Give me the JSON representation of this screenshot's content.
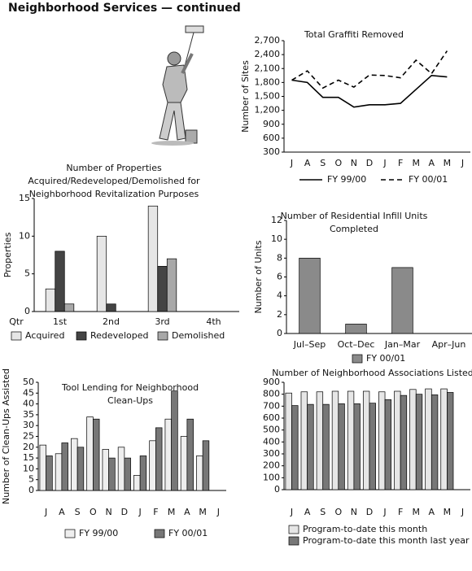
{
  "page_title": "Neighborhood Services — continued",
  "chart_data": [
    {
      "type": "line",
      "title": [
        "Total Graffiti Removed"
      ],
      "y_label": "Number of Sites",
      "categories": [
        "J",
        "A",
        "S",
        "O",
        "N",
        "D",
        "J",
        "F",
        "M",
        "A",
        "M",
        "J"
      ],
      "series": [
        {
          "name": "FY 99/00",
          "color": "#000000",
          "line_style": "solid",
          "values": [
            1850,
            1800,
            1480,
            1480,
            1270,
            1320,
            1320,
            1350,
            1650,
            1950,
            1920,
            null
          ]
        },
        {
          "name": "FY 00/01",
          "color": "#000000",
          "line_style": "dashed",
          "values": [
            1850,
            2050,
            1680,
            1850,
            1700,
            1960,
            1950,
            1900,
            2280,
            1990,
            2480,
            null
          ]
        }
      ],
      "ylim": [
        300,
        2700
      ],
      "yticks": [
        300,
        600,
        900,
        {
          "value": 1200,
          "label": "1,200"
        },
        {
          "value": 1500,
          "label": "1,500"
        },
        {
          "value": 1800,
          "label": "1,800"
        },
        {
          "value": 2100,
          "label": "2,100"
        },
        {
          "value": 2400,
          "label": "2,400"
        },
        {
          "value": 2700,
          "label": "2,700"
        }
      ],
      "grid": false
    },
    {
      "type": "bar",
      "title": [
        "Number of Properties",
        "Acquired/Redeveloped/Demolished for",
        "Neighborhood Revitalization Purposes"
      ],
      "y_label": "Properties",
      "x_label": "Qtr",
      "categories": [
        "1st",
        "2nd",
        "3rd",
        "4th"
      ],
      "series": [
        {
          "name": "Acquired",
          "color": "#e6e6e6",
          "values": [
            3,
            10,
            14,
            null
          ]
        },
        {
          "name": "Redeveloped",
          "color": "#444444",
          "values": [
            8,
            1,
            6,
            null
          ]
        },
        {
          "name": "Demolished",
          "color": "#a8a8a8",
          "values": [
            1,
            0,
            7,
            null
          ]
        }
      ],
      "ylim": [
        0,
        15
      ],
      "yticks": [
        0,
        5,
        10,
        15
      ],
      "grid": false
    },
    {
      "type": "bar",
      "title": [
        "Number of Residential Infill Units",
        "Completed"
      ],
      "y_label": "Number of Units",
      "categories": [
        "Jul–Sep",
        "Oct–Dec",
        "Jan–Mar",
        "Apr–Jun"
      ],
      "series": [
        {
          "name": "FY 00/01",
          "color": "#8a8a8a",
          "values": [
            8,
            1,
            7,
            null
          ]
        }
      ],
      "ylim": [
        0,
        12
      ],
      "yticks": [
        0,
        2,
        4,
        6,
        8,
        10,
        12
      ],
      "grid": false
    },
    {
      "type": "bar",
      "title": [
        "Tool Lending for Neighborhood",
        "Clean-Ups"
      ],
      "y_label": "Number of Clean-Ups Assisted",
      "categories": [
        "J",
        "A",
        "S",
        "O",
        "N",
        "D",
        "J",
        "F",
        "M",
        "A",
        "M",
        "J"
      ],
      "series": [
        {
          "name": "FY 99/00",
          "color": "#eeeeee",
          "values": [
            21,
            17,
            24,
            34,
            19,
            20,
            7,
            23,
            33,
            25,
            16,
            null
          ]
        },
        {
          "name": "FY 00/01",
          "color": "#777777",
          "values": [
            16,
            22,
            20,
            33,
            15,
            15,
            16,
            29,
            46,
            33,
            23,
            null
          ]
        }
      ],
      "ylim": [
        0,
        50
      ],
      "yticks": [
        0,
        5,
        10,
        15,
        20,
        25,
        30,
        35,
        40,
        45,
        50
      ],
      "grid": false
    },
    {
      "type": "bar",
      "title": [
        "Number of Neighborhood Associations Listed"
      ],
      "categories": [
        "J",
        "A",
        "S",
        "O",
        "N",
        "D",
        "J",
        "F",
        "M",
        "A",
        "M",
        "J"
      ],
      "series": [
        {
          "name": "Program-to-date this month",
          "color": "#e6e6e6",
          "values": [
            810,
            820,
            820,
            825,
            825,
            825,
            820,
            825,
            840,
            845,
            845,
            null
          ]
        },
        {
          "name": "Program-to-date this month last year",
          "color": "#777777",
          "values": [
            705,
            715,
            715,
            720,
            720,
            725,
            755,
            790,
            800,
            795,
            815,
            null
          ]
        }
      ],
      "ylim": [
        0,
        900
      ],
      "yticks": [
        0,
        100,
        200,
        300,
        400,
        500,
        600,
        700,
        800,
        900
      ],
      "grid": false
    }
  ]
}
